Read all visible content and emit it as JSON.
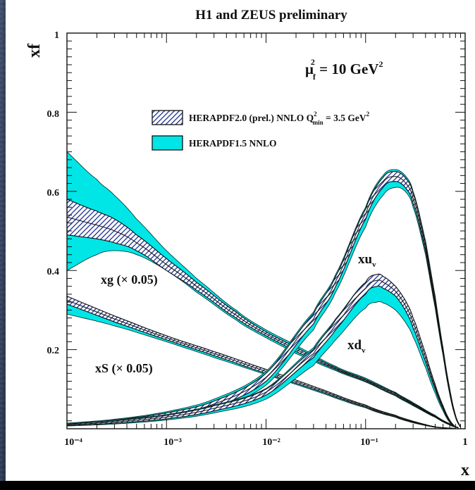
{
  "chart_data": {
    "type": "line",
    "title": "H1 and ZEUS preliminary",
    "xlabel": "x",
    "ylabel": "xf",
    "x_scale": "log",
    "xlim": [
      0.0001,
      1
    ],
    "ylim": [
      0,
      1
    ],
    "x_ticks": [
      "10⁻⁴",
      "10⁻³",
      "10⁻²",
      "10⁻¹",
      "1"
    ],
    "y_ticks": [
      "0.2",
      "0.4",
      "0.6",
      "0.8",
      "1"
    ],
    "annotation": {
      "mu": "μ",
      "f": "f",
      "two": "2",
      "eq": " = 10 GeV",
      "sup": "2"
    },
    "legend": {
      "position": "top-right",
      "entries": [
        {
          "name": "HERAPDF2.0 (prel.) NNLO Q²min = 3.5 GeV²",
          "style": "hatched",
          "color": "#1c2f8f",
          "parts": {
            "main": "HERAPDF2.0 (prel.) NNLO Q",
            "sup": "2",
            "sub": "min",
            "tail": " = 3.5 GeV",
            "tail_sup": "2"
          }
        },
        {
          "name": "HERAPDF1.5 NNLO",
          "style": "filled",
          "color": "#00e6e6"
        }
      ]
    },
    "curve_labels": {
      "xg": {
        "text": "xg (× 0.05)"
      },
      "xS": {
        "text": "xS (× 0.05)"
      },
      "xuv": {
        "main": "xu",
        "sub": "v"
      },
      "xdv": {
        "main": "xd",
        "sub": "v"
      }
    },
    "series": [
      {
        "name": "xg (× 0.05)",
        "x": [
          0.0001,
          0.0002,
          0.0003,
          0.0005,
          0.001,
          0.002,
          0.005,
          0.01,
          0.02,
          0.05,
          0.1,
          0.2,
          0.3,
          0.5,
          0.7,
          0.85
        ],
        "herapdf20_lo": [
          0.49,
          0.48,
          0.47,
          0.45,
          0.4,
          0.35,
          0.28,
          0.235,
          0.195,
          0.15,
          0.12,
          0.085,
          0.06,
          0.03,
          0.01,
          0.002
        ],
        "herapdf20_hi": [
          0.58,
          0.55,
          0.53,
          0.49,
          0.43,
          0.37,
          0.295,
          0.245,
          0.205,
          0.155,
          0.125,
          0.09,
          0.064,
          0.033,
          0.012,
          0.003
        ],
        "herapdf15_lo": [
          0.4,
          0.44,
          0.45,
          0.44,
          0.4,
          0.345,
          0.275,
          0.23,
          0.19,
          0.147,
          0.118,
          0.083,
          0.058,
          0.029,
          0.01,
          0.002
        ],
        "herapdf15_hi": [
          0.7,
          0.63,
          0.59,
          0.53,
          0.45,
          0.38,
          0.3,
          0.25,
          0.21,
          0.158,
          0.128,
          0.092,
          0.066,
          0.034,
          0.013,
          0.003
        ]
      },
      {
        "name": "xS (× 0.05)",
        "x": [
          0.0001,
          0.0003,
          0.001,
          0.003,
          0.01,
          0.03,
          0.1,
          0.2,
          0.3,
          0.5,
          0.8
        ],
        "herapdf20_lo": [
          0.315,
          0.27,
          0.225,
          0.185,
          0.14,
          0.1,
          0.055,
          0.03,
          0.016,
          0.004,
          0.0005
        ],
        "herapdf20_hi": [
          0.335,
          0.285,
          0.235,
          0.195,
          0.15,
          0.107,
          0.06,
          0.034,
          0.019,
          0.005,
          0.0007
        ],
        "herapdf15_lo": [
          0.29,
          0.26,
          0.22,
          0.18,
          0.137,
          0.097,
          0.053,
          0.029,
          0.015,
          0.004,
          0.0004
        ],
        "herapdf15_hi": [
          0.33,
          0.285,
          0.235,
          0.195,
          0.15,
          0.107,
          0.06,
          0.034,
          0.019,
          0.005,
          0.0007
        ]
      },
      {
        "name": "xu_v",
        "x": [
          0.0001,
          0.0003,
          0.001,
          0.003,
          0.01,
          0.03,
          0.05,
          0.1,
          0.15,
          0.2,
          0.25,
          0.3,
          0.4,
          0.5,
          0.6,
          0.7,
          0.8,
          0.9
        ],
        "herapdf20_lo": [
          0.008,
          0.015,
          0.03,
          0.055,
          0.12,
          0.265,
          0.36,
          0.53,
          0.61,
          0.625,
          0.61,
          0.57,
          0.45,
          0.31,
          0.19,
          0.09,
          0.03,
          0.003
        ],
        "herapdf20_hi": [
          0.012,
          0.022,
          0.04,
          0.07,
          0.14,
          0.29,
          0.385,
          0.555,
          0.635,
          0.65,
          0.635,
          0.595,
          0.47,
          0.33,
          0.2,
          0.1,
          0.034,
          0.004
        ],
        "herapdf15_lo": [
          0.007,
          0.013,
          0.027,
          0.05,
          0.11,
          0.25,
          0.345,
          0.51,
          0.59,
          0.61,
          0.6,
          0.56,
          0.44,
          0.305,
          0.185,
          0.088,
          0.029,
          0.003
        ],
        "herapdf15_hi": [
          0.014,
          0.024,
          0.043,
          0.075,
          0.145,
          0.295,
          0.39,
          0.56,
          0.64,
          0.655,
          0.64,
          0.6,
          0.475,
          0.335,
          0.205,
          0.102,
          0.035,
          0.004
        ]
      },
      {
        "name": "xd_v",
        "x": [
          0.0001,
          0.0003,
          0.001,
          0.003,
          0.01,
          0.03,
          0.05,
          0.1,
          0.13,
          0.15,
          0.2,
          0.25,
          0.3,
          0.4,
          0.5,
          0.6,
          0.7,
          0.8
        ],
        "herapdf20_lo": [
          0.008,
          0.014,
          0.025,
          0.045,
          0.085,
          0.18,
          0.25,
          0.34,
          0.36,
          0.355,
          0.335,
          0.3,
          0.255,
          0.17,
          0.1,
          0.05,
          0.018,
          0.003
        ],
        "herapdf20_hi": [
          0.012,
          0.02,
          0.034,
          0.058,
          0.1,
          0.2,
          0.275,
          0.37,
          0.39,
          0.385,
          0.36,
          0.325,
          0.28,
          0.19,
          0.112,
          0.058,
          0.022,
          0.004
        ],
        "herapdf15_lo": [
          0.007,
          0.012,
          0.022,
          0.04,
          0.075,
          0.16,
          0.225,
          0.305,
          0.32,
          0.318,
          0.3,
          0.27,
          0.232,
          0.155,
          0.09,
          0.045,
          0.016,
          0.003
        ],
        "herapdf15_hi": [
          0.014,
          0.022,
          0.036,
          0.06,
          0.102,
          0.205,
          0.278,
          0.37,
          0.39,
          0.385,
          0.36,
          0.325,
          0.28,
          0.19,
          0.112,
          0.058,
          0.022,
          0.004
        ]
      }
    ]
  }
}
